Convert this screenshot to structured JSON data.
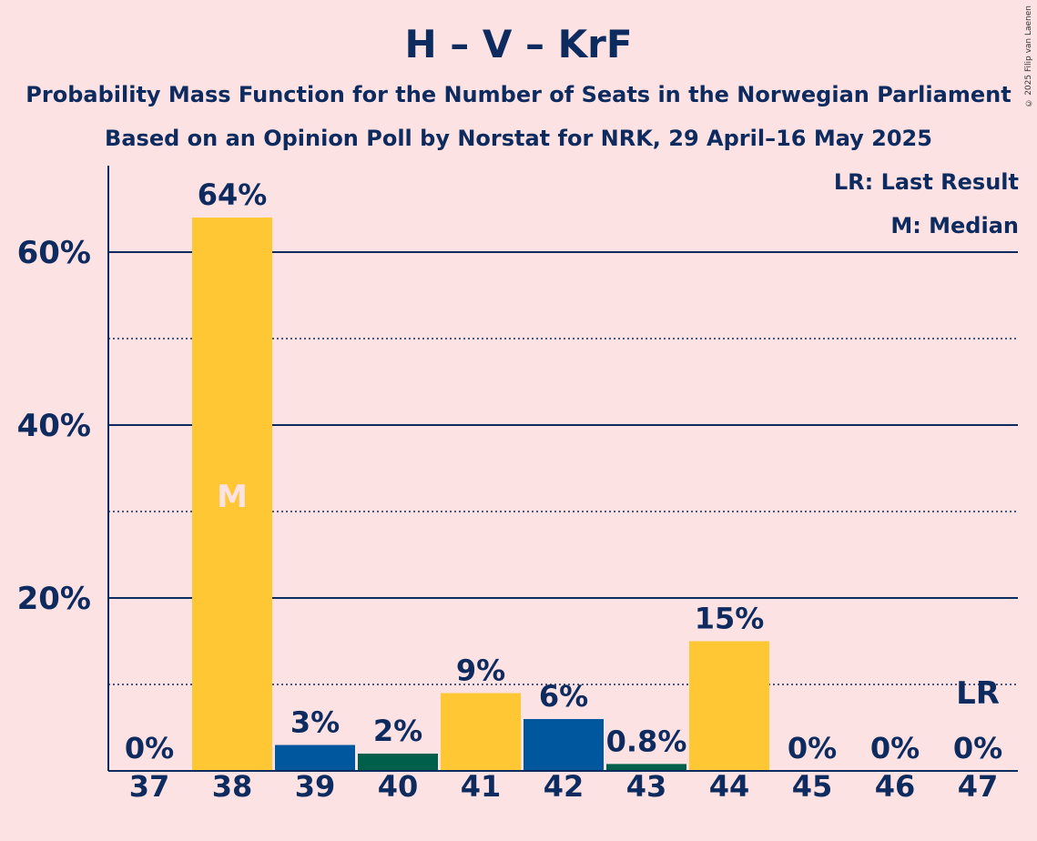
{
  "title": "H – V – KrF",
  "subtitle": "Probability Mass Function for the Number of Seats in the Norwegian Parliament",
  "subtitle2": "Based on an Opinion Poll by Norstat for NRK, 29 April–16 May 2025",
  "copyright": "© 2025 Filip van Laenen",
  "legend": {
    "lr": "LR: Last Result",
    "median": "M: Median"
  },
  "colors": {
    "background": "#fde2e4",
    "yellow": "#ffc733",
    "blue": "#00579d",
    "green": "#005f4b",
    "text": "#0d2b5e"
  },
  "chart_data": {
    "type": "bar",
    "categories": [
      "37",
      "38",
      "39",
      "40",
      "41",
      "42",
      "43",
      "44",
      "45",
      "46",
      "47"
    ],
    "values": [
      0,
      64,
      3,
      2,
      9,
      6,
      0.8,
      15,
      0,
      0,
      0
    ],
    "labels": [
      "0%",
      "64%",
      "3%",
      "2%",
      "9%",
      "6%",
      "0.8%",
      "15%",
      "0%",
      "0%",
      "0%"
    ],
    "bar_colors": [
      "#ffc733",
      "#ffc733",
      "#00579d",
      "#005f4b",
      "#ffc733",
      "#00579d",
      "#005f4b",
      "#ffc733",
      "#ffc733",
      "#ffc733",
      "#ffc733"
    ],
    "yticks": [
      20,
      40,
      60
    ],
    "ytick_labels": [
      "20%",
      "40%",
      "60%"
    ],
    "minor_gridlines": [
      10,
      30,
      50
    ],
    "ylim": [
      0,
      70
    ],
    "median": {
      "category": "38",
      "label": "M"
    },
    "last_result": {
      "category": "47",
      "label": "LR"
    }
  }
}
